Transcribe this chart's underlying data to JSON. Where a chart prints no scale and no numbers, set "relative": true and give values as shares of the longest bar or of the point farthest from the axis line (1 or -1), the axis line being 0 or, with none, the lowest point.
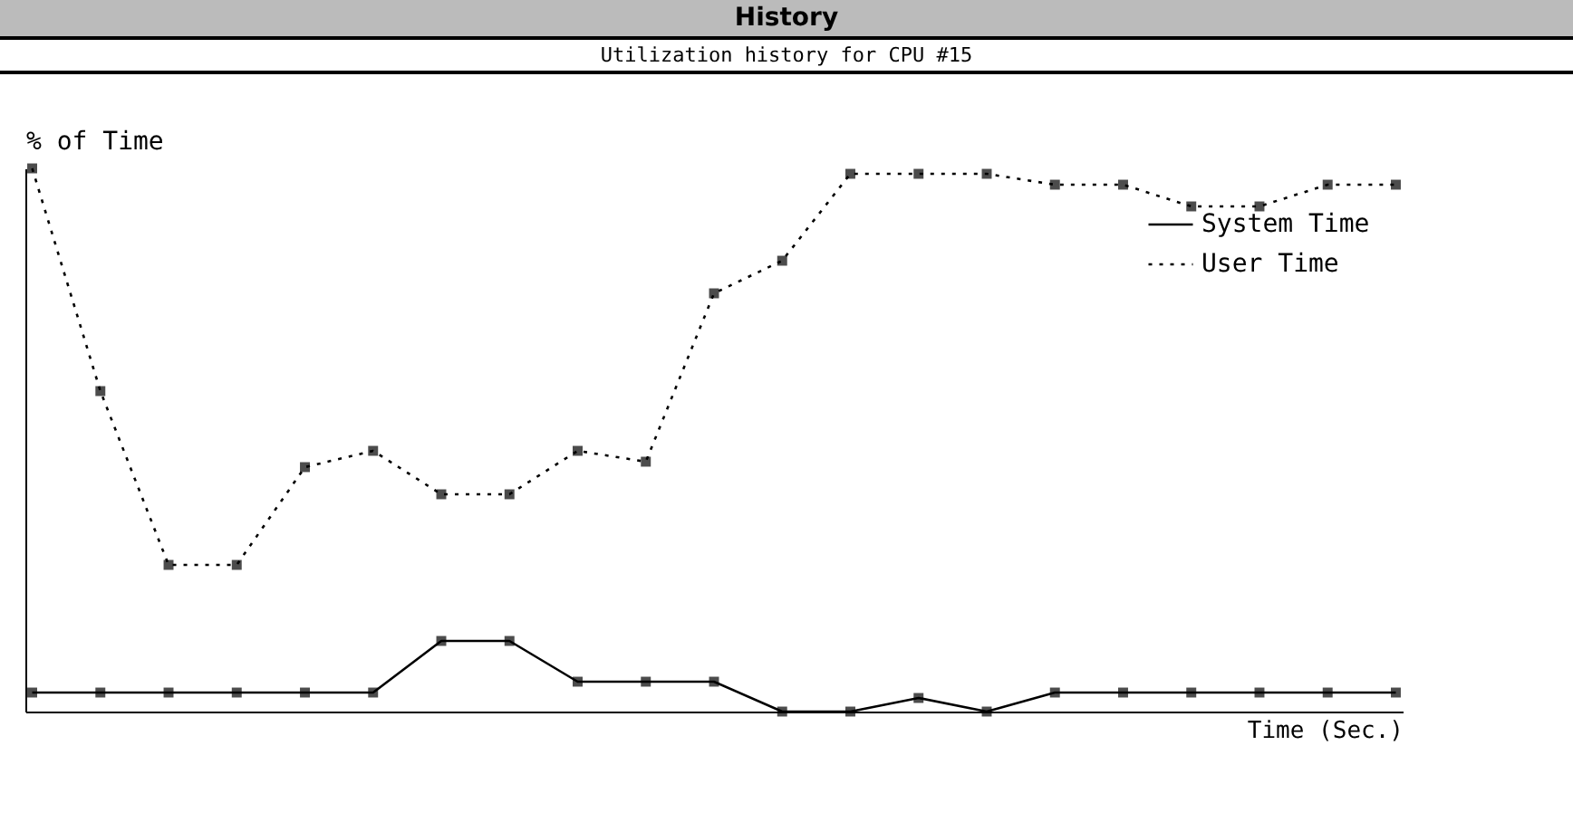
{
  "chart_data": {
    "type": "line",
    "title": "History",
    "subtitle": "Utilization history for CPU #15",
    "xlabel": "Time (Sec.)",
    "ylabel": "% of Time",
    "relative": true,
    "categories": [
      null,
      null,
      null,
      null,
      null,
      null,
      null,
      null,
      null,
      null,
      null,
      null,
      null,
      null,
      null,
      null,
      null,
      null,
      null,
      null,
      null
    ],
    "series": [
      {
        "name": "System Time",
        "color": "#000000",
        "line_style": "solid",
        "values": [
          0.035,
          0.035,
          0.035,
          0.035,
          0.035,
          0.035,
          0.13,
          0.13,
          0.055,
          0.055,
          0.055,
          0,
          0,
          0.025,
          0,
          0.035,
          0.035,
          0.035,
          0.035,
          0.035,
          0.035
        ]
      },
      {
        "name": "User Time",
        "color": "#000000",
        "line_style": "dotted",
        "values": [
          1,
          0.59,
          0.27,
          0.27,
          0.45,
          0.48,
          0.4,
          0.4,
          0.48,
          0.46,
          0.77,
          0.83,
          0.99,
          0.99,
          0.99,
          0.97,
          0.97,
          0.93,
          0.93,
          0.97,
          0.97
        ]
      }
    ],
    "marker": "square",
    "legend": "top right",
    "grid": false
  }
}
